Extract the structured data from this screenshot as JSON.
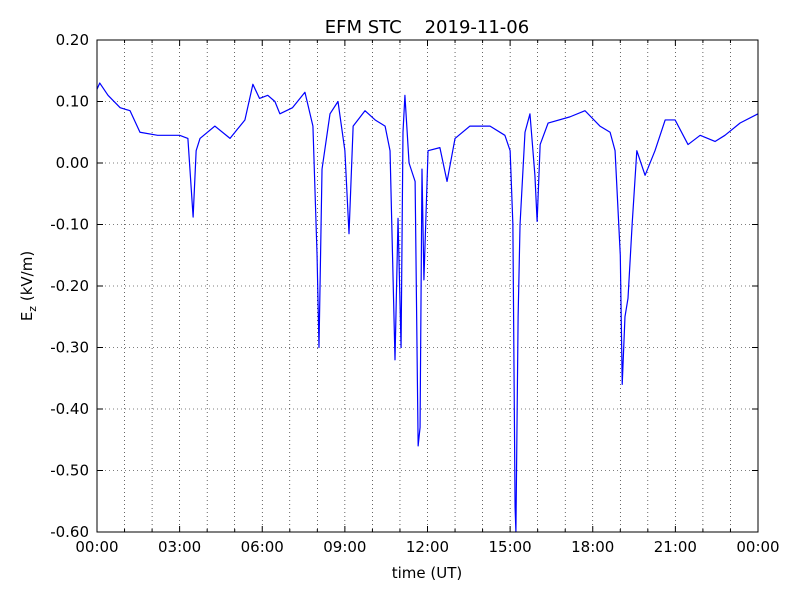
{
  "chart_data": {
    "type": "line",
    "title": "EFM STC    2019-11-06",
    "xlabel": "time (UT)",
    "ylabel": {
      "main": "E",
      "sub": "z",
      "unit": " (kV/m)"
    },
    "xlim": [
      0,
      24
    ],
    "xticks": [
      {
        "value": 0,
        "label": "00:00"
      },
      {
        "value": 3,
        "label": "03:00"
      },
      {
        "value": 6,
        "label": "06:00"
      },
      {
        "value": 9,
        "label": "09:00"
      },
      {
        "value": 12,
        "label": "12:00"
      },
      {
        "value": 15,
        "label": "15:00"
      },
      {
        "value": 18,
        "label": "18:00"
      },
      {
        "value": 21,
        "label": "21:00"
      },
      {
        "value": 24,
        "label": "00:00"
      }
    ],
    "xminorticks": [
      1,
      2,
      4,
      5,
      7,
      8,
      10,
      11,
      13,
      14,
      16,
      17,
      19,
      20,
      22,
      23
    ],
    "ylim": [
      -0.6,
      0.2
    ],
    "yticks": [
      {
        "value": -0.6,
        "label": "-0.60"
      },
      {
        "value": -0.5,
        "label": "-0.50"
      },
      {
        "value": -0.4,
        "label": "-0.40"
      },
      {
        "value": -0.3,
        "label": "-0.30"
      },
      {
        "value": -0.2,
        "label": "-0.20"
      },
      {
        "value": -0.1,
        "label": "-0.10"
      },
      {
        "value": 0,
        "label": "0.00"
      },
      {
        "value": 0.1,
        "label": "0.10"
      },
      {
        "value": 0.2,
        "label": "0.20"
      }
    ],
    "grid": true,
    "series": [
      {
        "color": "#0000ff",
        "x": [
          0,
          0.1,
          0.4,
          0.84,
          1.2,
          1.56,
          2.2,
          3.0,
          3.3,
          3.49,
          3.6,
          3.74,
          4.28,
          4.83,
          5.1,
          5.37,
          5.66,
          5.9,
          6.2,
          6.46,
          6.64,
          7.1,
          7.55,
          7.84,
          7.99,
          8.06,
          8.17,
          8.46,
          8.75,
          9.0,
          9.15,
          9.3,
          9.73,
          10.1,
          10.46,
          10.64,
          10.82,
          10.93,
          11.04,
          11.11,
          11.18,
          11.33,
          11.55,
          11.66,
          11.73,
          11.8,
          11.87,
          12.02,
          12.45,
          12.71,
          13.0,
          13.54,
          14.27,
          14.81,
          15.0,
          15.1,
          15.18,
          15.21,
          15.29,
          15.36,
          15.54,
          15.72,
          15.9,
          15.98,
          16.09,
          16.38,
          17.17,
          17.72,
          18.26,
          18.63,
          18.81,
          19.0,
          19.07,
          19.17,
          19.28,
          19.43,
          19.6,
          19.9,
          20.26,
          20.63,
          20.99,
          21.46,
          21.9,
          22.44,
          22.8,
          23.35,
          24.0
        ],
        "values": [
          0.12,
          0.13,
          0.11,
          0.09,
          0.085,
          0.05,
          0.045,
          0.045,
          0.04,
          -0.088,
          0.02,
          0.04,
          0.06,
          0.04,
          0.055,
          0.07,
          0.128,
          0.105,
          0.11,
          0.1,
          0.08,
          0.09,
          0.115,
          0.06,
          -0.15,
          -0.3,
          -0.01,
          0.08,
          0.1,
          0.02,
          -0.115,
          0.06,
          0.085,
          0.07,
          0.06,
          0.02,
          -0.32,
          -0.09,
          -0.3,
          0.05,
          0.11,
          0.0,
          -0.03,
          -0.46,
          -0.43,
          -0.01,
          -0.19,
          0.02,
          0.025,
          -0.03,
          0.04,
          0.06,
          0.06,
          0.045,
          0.02,
          -0.1,
          -0.56,
          -0.6,
          -0.25,
          -0.1,
          0.05,
          0.08,
          -0.02,
          -0.095,
          0.03,
          0.065,
          0.075,
          0.085,
          0.06,
          0.05,
          0.02,
          -0.15,
          -0.36,
          -0.25,
          -0.22,
          -0.1,
          0.02,
          -0.02,
          0.02,
          0.07,
          0.07,
          0.03,
          0.045,
          0.035,
          0.045,
          0.065,
          0.08
        ]
      }
    ]
  }
}
